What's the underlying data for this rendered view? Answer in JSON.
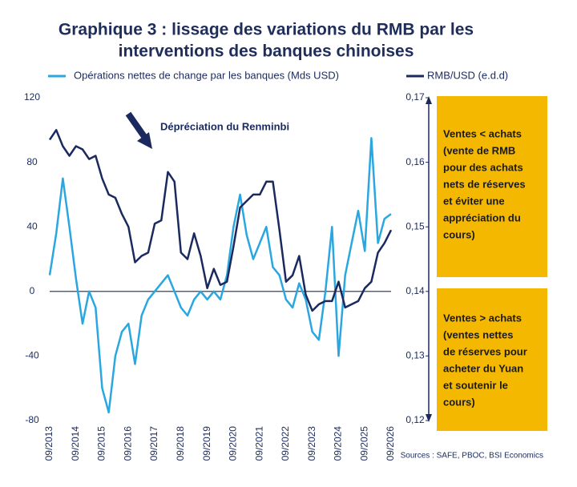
{
  "chart_data": {
    "type": "line",
    "title": [
      "Graphique 3 : lissage des variations du RMB par les",
      "interventions des banques chinoises"
    ],
    "categories": [
      "09/2013",
      null,
      null,
      null,
      "09/2014",
      null,
      null,
      null,
      "09/2015",
      null,
      null,
      null,
      "09/2016",
      null,
      null,
      null,
      "09/2017",
      null,
      null,
      null,
      "09/2018",
      null,
      null,
      null,
      "09/2019",
      null,
      null,
      null,
      "09/2020",
      null,
      null,
      null,
      "09/2021",
      null,
      null,
      null,
      "09/2022",
      null,
      null,
      null,
      "09/2023",
      null,
      null,
      null,
      "09/2024",
      null,
      null,
      null,
      "09/2025",
      null,
      null,
      null,
      "09/2026"
    ],
    "series": [
      {
        "name": "Opérations nettes de change par les banques (Mds USD)",
        "color": "#2aa7e0",
        "axis": "y",
        "values": [
          10,
          36,
          70,
          40,
          8,
          -20,
          0,
          -10,
          -60,
          -75,
          -40,
          -25,
          -20,
          -45,
          -15,
          -5,
          0,
          5,
          10,
          0,
          -10,
          -15,
          -5,
          0,
          -5,
          0,
          -5,
          10,
          40,
          60,
          35,
          20,
          30,
          40,
          15,
          10,
          -5,
          -10,
          5,
          -5,
          -25,
          -30,
          0,
          40,
          -40,
          10,
          30,
          50,
          25,
          95,
          30,
          45,
          48
        ]
      },
      {
        "name": "RMB/USD (e.d.d)",
        "color": "#1a2a5e",
        "axis": "y2",
        "values": [
          0.1635,
          0.165,
          0.1625,
          0.161,
          0.1625,
          0.162,
          0.1605,
          0.161,
          0.1575,
          0.155,
          0.1545,
          0.152,
          0.15,
          0.1445,
          0.1455,
          0.146,
          0.1505,
          0.151,
          0.1585,
          0.157,
          0.146,
          0.145,
          0.149,
          0.1455,
          0.1405,
          0.1435,
          0.141,
          0.1415,
          0.147,
          0.153,
          0.154,
          0.155,
          0.155,
          0.157,
          0.157,
          0.1495,
          0.1415,
          0.1425,
          0.1455,
          0.1395,
          0.137,
          0.138,
          0.1385,
          0.1385,
          0.1415,
          0.1375,
          0.138,
          0.1385,
          0.1405,
          0.1415,
          0.146,
          0.1475,
          0.1495
        ]
      }
    ],
    "ylim": [
      -80,
      120
    ],
    "yticks": [
      -80,
      -40,
      0,
      40,
      80,
      120
    ],
    "y2lim": [
      0.12,
      0.17
    ],
    "y2ticks": [
      {
        "value": 0.12,
        "label": "0,12"
      },
      {
        "value": 0.13,
        "label": "0,13"
      },
      {
        "value": 0.14,
        "label": "0,14"
      },
      {
        "value": 0.15,
        "label": "0,15"
      },
      {
        "value": 0.16,
        "label": "0,16"
      },
      {
        "value": 0.17,
        "label": "0,17"
      }
    ],
    "annotations": [
      "Dépréciation du Renminbi"
    ],
    "boxes": [
      [
        "Ventes < achats",
        "(vente de RMB",
        "pour des achats",
        "nets de réserves",
        "et éviter une",
        "appréciation du",
        "cours)"
      ],
      [
        "Ventes > achats",
        "(ventes nettes",
        "de réserves pour",
        "acheter du Yuan",
        "et soutenir le",
        "cours)"
      ]
    ],
    "source": "Sources : SAFE, PBOC, BSI Economics"
  }
}
